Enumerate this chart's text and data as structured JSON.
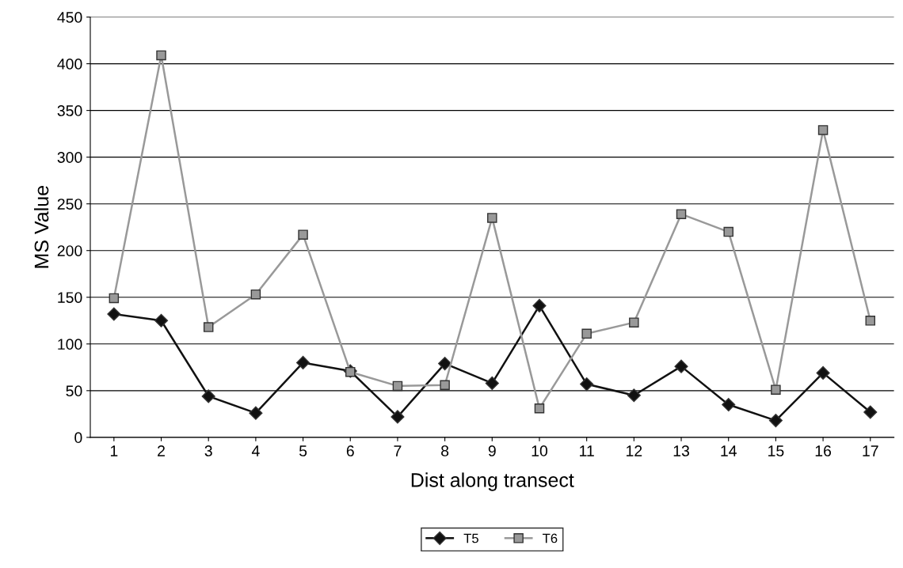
{
  "chart_data": {
    "type": "line",
    "xlabel": "Dist along transect",
    "ylabel": "MS Value",
    "categories": [
      "1",
      "2",
      "3",
      "4",
      "5",
      "6",
      "7",
      "8",
      "9",
      "10",
      "11",
      "12",
      "13",
      "14",
      "15",
      "16",
      "17"
    ],
    "series": [
      {
        "name": "T5",
        "color": "#111111",
        "marker": "diamond",
        "values": [
          132,
          125,
          44,
          26,
          80,
          71,
          22,
          79,
          58,
          141,
          57,
          45,
          76,
          35,
          18,
          69,
          27
        ]
      },
      {
        "name": "T6",
        "color": "#999999",
        "marker": "square",
        "values": [
          149,
          409,
          118,
          153,
          217,
          70,
          55,
          56,
          235,
          31,
          111,
          123,
          239,
          220,
          51,
          329,
          125
        ]
      }
    ],
    "ylim": [
      0,
      450
    ],
    "yticks": [
      0,
      50,
      100,
      150,
      200,
      250,
      300,
      350,
      400,
      450
    ],
    "grid": "y",
    "legend": "bottom",
    "line_style": "solid"
  }
}
